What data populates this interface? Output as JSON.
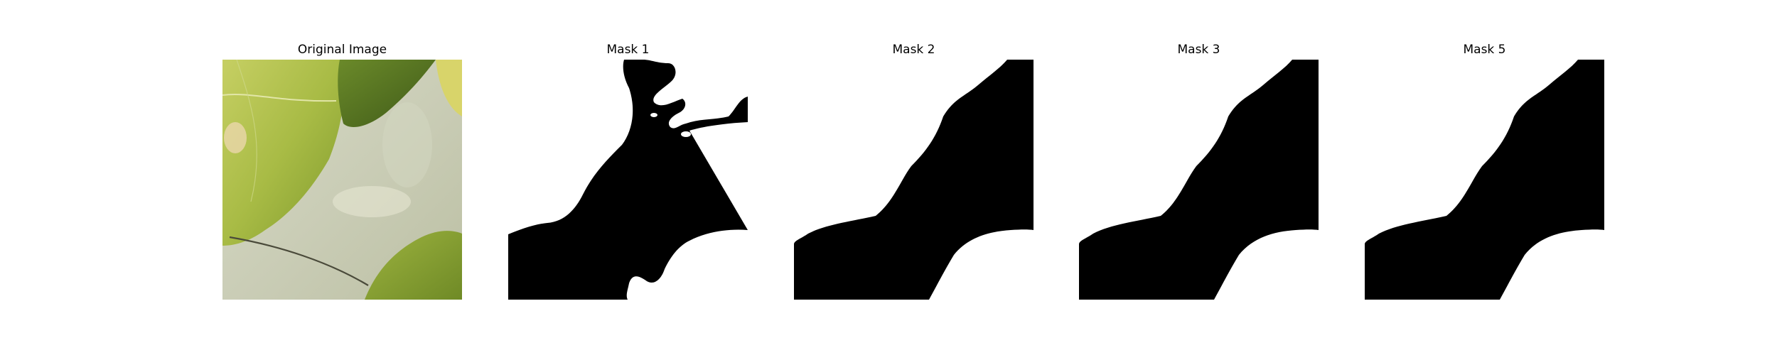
{
  "figure": {
    "panels": [
      {
        "title": "Original Image",
        "kind": "photo"
      },
      {
        "title": "Mask 1",
        "kind": "mask"
      },
      {
        "title": "Mask 2",
        "kind": "mask"
      },
      {
        "title": "Mask 3",
        "kind": "mask"
      },
      {
        "title": "Mask 5",
        "kind": "mask"
      }
    ]
  },
  "colors": {
    "mask_foreground": "#ffffff",
    "mask_background": "#000000",
    "leaf_bright": "#b4c24a",
    "leaf_mid": "#93a93a",
    "leaf_dark": "#4f6b1f",
    "background_surface": "#c9ccb5"
  }
}
